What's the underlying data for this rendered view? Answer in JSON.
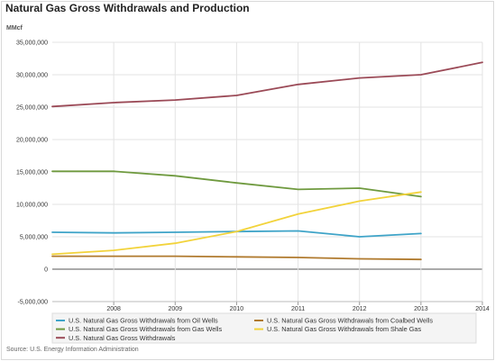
{
  "chart_data": {
    "type": "line",
    "title": "Natural Gas Gross Withdrawals and Production",
    "unit_label": "MMcf",
    "source": "Source: U.S. Energy Information Administration",
    "x": [
      "2007",
      "2008",
      "2009",
      "2010",
      "2011",
      "2012",
      "2013",
      "2014"
    ],
    "x_tick_labels": [
      "2008",
      "2009",
      "2010",
      "2011",
      "2012",
      "2013",
      "2014"
    ],
    "xlim": [
      "2007",
      "2014"
    ],
    "y_tick_labels": [
      "-5,000,000",
      "0",
      "5,000,000",
      "10,000,000",
      "15,000,000",
      "20,000,000",
      "25,000,000",
      "30,000,000",
      "35,000,000"
    ],
    "y_ticks": [
      -5000000,
      0,
      5000000,
      10000000,
      15000000,
      20000000,
      25000000,
      30000000,
      35000000
    ],
    "ylim": [
      -5000000,
      35000000
    ],
    "grid": true,
    "legend_position": "bottom",
    "series": [
      {
        "name": "U.S. Natural Gas Gross Withdrawals from Oil Wells",
        "color": "#3fa4c8",
        "values": [
          5700000,
          5600000,
          5700000,
          5800000,
          5900000,
          5000000,
          5500000,
          null
        ]
      },
      {
        "name": "U.S. Natural Gas Gross Withdrawals from Coalbed Wells",
        "color": "#b07a2e",
        "values": [
          2000000,
          2000000,
          2000000,
          1900000,
          1800000,
          1600000,
          1500000,
          null
        ]
      },
      {
        "name": "U.S. Natural Gas Gross Withdrawals from Gas Wells",
        "color": "#6f9a3f",
        "values": [
          15100000,
          15100000,
          14400000,
          13300000,
          12300000,
          12500000,
          11200000,
          null
        ]
      },
      {
        "name": "U.S. Natural Gas Gross Withdrawals from Shale Gas",
        "color": "#f2d33b",
        "values": [
          2300000,
          2900000,
          4000000,
          5800000,
          8500000,
          10500000,
          11900000,
          null
        ]
      },
      {
        "name": "U.S. Natural Gas Gross Withdrawals",
        "color": "#9b4a57",
        "values": [
          25100000,
          25700000,
          26100000,
          26800000,
          28500000,
          29500000,
          30000000,
          31900000
        ]
      }
    ]
  }
}
